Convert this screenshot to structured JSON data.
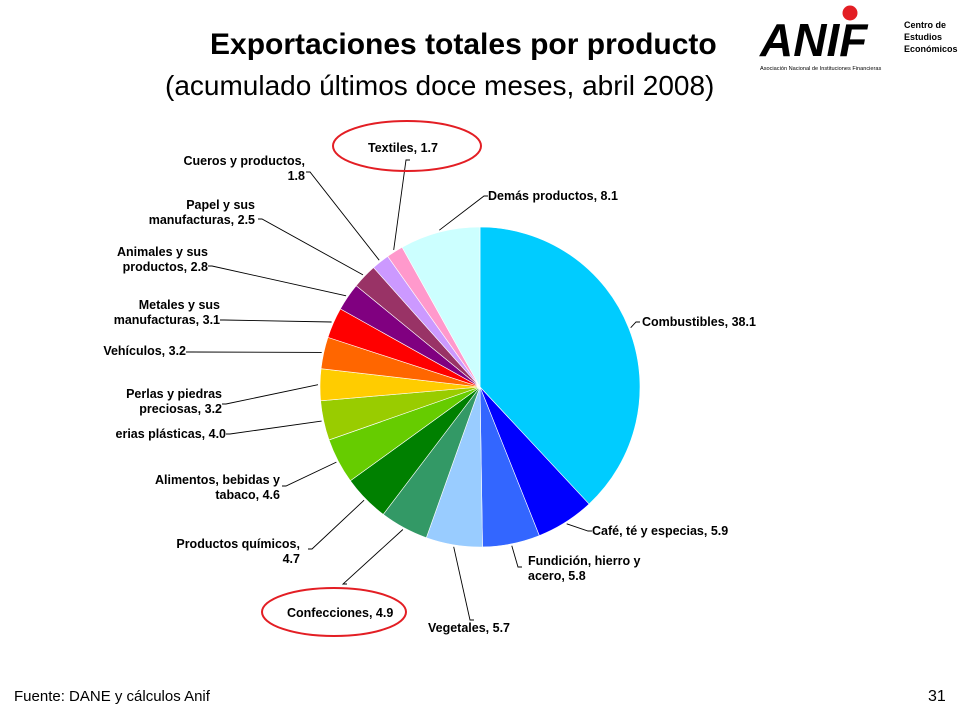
{
  "title": "Exportaciones totales por producto",
  "subtitle": "(acumulado últimos doce meses, abril 2008)",
  "source": "Fuente: DANE y cálculos Anif",
  "page_number": "31",
  "logo": {
    "wordmark": "ANIF",
    "tagline": "Asociación Nacional de Instituciones Financieras",
    "side_text": [
      "Centro de",
      "Estudios",
      "Económicos"
    ]
  },
  "chart_data": {
    "type": "pie",
    "slices": [
      {
        "label": "Combustibles, 38.1",
        "value": 38.1,
        "color": "#00CCFF"
      },
      {
        "label": "Café, té y especias, 5.9",
        "value": 5.9,
        "color": "#0000FF"
      },
      {
        "label": "Fundición, hierro y acero, 5.8",
        "value": 5.8,
        "color": "#3366FF"
      },
      {
        "label": "Vegetales, 5.7",
        "value": 5.7,
        "color": "#99CCFF"
      },
      {
        "label": "Confecciones, 4.9",
        "value": 4.9,
        "color": "#339966"
      },
      {
        "label": "Productos químicos, 4.7",
        "value": 4.7,
        "color": "#008000"
      },
      {
        "label": "Alimentos, bebidas y tabaco, 4.6",
        "value": 4.6,
        "color": "#66CC00"
      },
      {
        "label": "erias plásticas, 4.0",
        "value": 4.0,
        "color": "#99CC00"
      },
      {
        "label": "Perlas y piedras preciosas, 3.2",
        "value": 3.2,
        "color": "#FFCC00"
      },
      {
        "label": "Vehículos, 3.2",
        "value": 3.2,
        "color": "#FF6600"
      },
      {
        "label": "Metales y sus manufacturas, 3.1",
        "value": 3.1,
        "color": "#FF0000"
      },
      {
        "label": "Animales y sus productos, 2.8",
        "value": 2.8,
        "color": "#800080"
      },
      {
        "label": "Papel y sus manufacturas, 2.5",
        "value": 2.5,
        "color": "#993366"
      },
      {
        "label": "Cueros y productos, 1.8",
        "value": 1.8,
        "color": "#CC99FF"
      },
      {
        "label": "Textiles, 1.7",
        "value": 1.7,
        "color": "#FF99CC"
      },
      {
        "label": "Demás productos, 8.1",
        "value": 8.1,
        "color": "#CCFFFF"
      }
    ],
    "highlighted": [
      "Textiles, 1.7",
      "Confecciones, 4.9"
    ],
    "highlight_color": "#E31E24"
  }
}
